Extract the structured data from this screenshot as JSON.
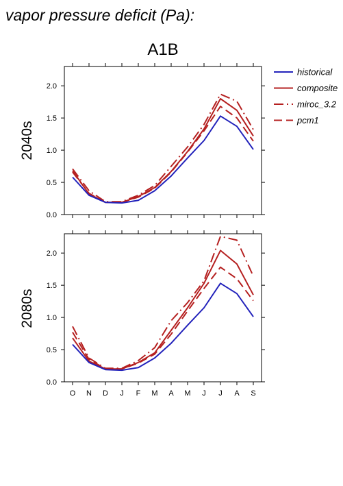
{
  "title": "vapor pressure deficit (Pa):",
  "scenario": "A1B",
  "colors": {
    "historical": "#2222bb",
    "projected": "#b52020"
  },
  "legend": [
    {
      "name": "historical",
      "color": "#2222bb",
      "dash": "solid"
    },
    {
      "name": "composite",
      "color": "#b52020",
      "dash": "solid"
    },
    {
      "name": "miroc_3.2",
      "color": "#b52020",
      "dash": "dashdot"
    },
    {
      "name": "pcm1",
      "color": "#b52020",
      "dash": "dashed"
    }
  ],
  "chart_data": [
    {
      "type": "line",
      "row_label": "2040s",
      "categories": [
        "O",
        "N",
        "D",
        "J",
        "F",
        "M",
        "A",
        "M",
        "J",
        "J",
        "A",
        "S"
      ],
      "ylim": [
        0,
        2.3
      ],
      "yticks": [
        "0.0",
        "0.5",
        "1.0",
        "1.5",
        "2.0"
      ],
      "grid": false,
      "legend_position": "right",
      "series": [
        {
          "name": "historical",
          "values": [
            0.58,
            0.3,
            0.19,
            0.18,
            0.22,
            0.37,
            0.6,
            0.88,
            1.15,
            1.53,
            1.37,
            1.01
          ]
        },
        {
          "name": "composite",
          "values": [
            0.68,
            0.32,
            0.19,
            0.19,
            0.28,
            0.42,
            0.67,
            0.98,
            1.33,
            1.8,
            1.62,
            1.22
          ]
        },
        {
          "name": "miroc_3.2",
          "values": [
            0.71,
            0.37,
            0.2,
            0.2,
            0.3,
            0.45,
            0.75,
            1.05,
            1.4,
            1.87,
            1.76,
            1.32
          ]
        },
        {
          "name": "pcm1",
          "values": [
            0.66,
            0.33,
            0.19,
            0.19,
            0.27,
            0.41,
            0.66,
            0.97,
            1.3,
            1.68,
            1.5,
            1.14
          ]
        }
      ]
    },
    {
      "type": "line",
      "row_label": "2080s",
      "categories": [
        "O",
        "N",
        "D",
        "J",
        "F",
        "M",
        "A",
        "M",
        "J",
        "J",
        "A",
        "S"
      ],
      "ylim": [
        0,
        2.3
      ],
      "yticks": [
        "0.0",
        "0.5",
        "1.0",
        "1.5",
        "2.0"
      ],
      "grid": false,
      "series": [
        {
          "name": "historical",
          "values": [
            0.58,
            0.3,
            0.19,
            0.18,
            0.22,
            0.37,
            0.6,
            0.88,
            1.15,
            1.53,
            1.37,
            1.01
          ]
        },
        {
          "name": "composite",
          "values": [
            0.68,
            0.32,
            0.2,
            0.2,
            0.3,
            0.45,
            0.8,
            1.15,
            1.53,
            2.04,
            1.83,
            1.35
          ]
        },
        {
          "name": "miroc_3.2",
          "values": [
            0.86,
            0.37,
            0.21,
            0.21,
            0.33,
            0.53,
            0.95,
            1.23,
            1.57,
            2.26,
            2.2,
            1.64
          ]
        },
        {
          "name": "pcm1",
          "values": [
            0.77,
            0.35,
            0.2,
            0.2,
            0.29,
            0.43,
            0.74,
            1.1,
            1.45,
            1.78,
            1.6,
            1.26
          ]
        }
      ]
    }
  ]
}
